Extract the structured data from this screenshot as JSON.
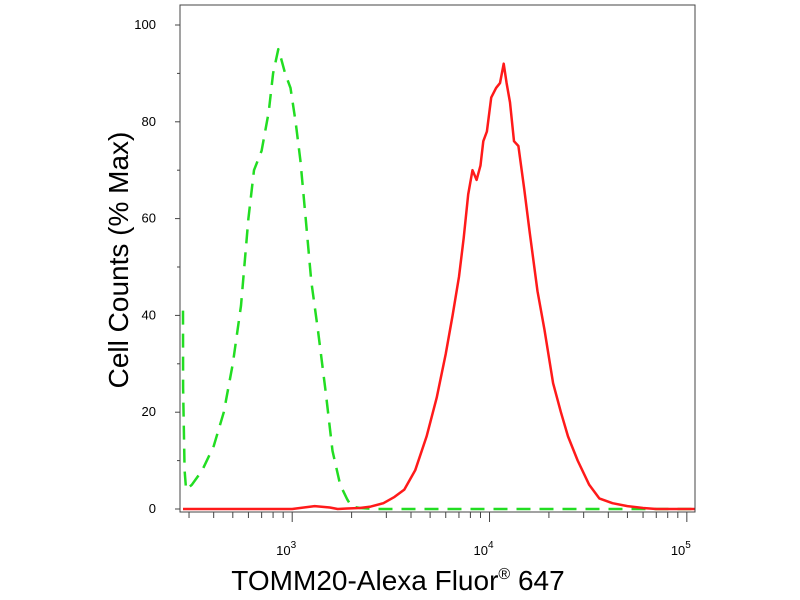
{
  "chart_data": {
    "type": "line",
    "xlabel": "TOMM20-Alexa Fluor",
    "xlabel_superscript": "®",
    "xlabel_suffix": " 647",
    "ylabel": "Cell Counts (% Max)",
    "xscale": "log",
    "xlim": [
      270,
      110000
    ],
    "ylim": [
      0,
      100
    ],
    "y_ticks": [
      0,
      20,
      40,
      60,
      80,
      100
    ],
    "y_tick_labels": [
      "0",
      "20",
      "40",
      "60",
      "80",
      "100"
    ],
    "x_ticks": [
      {
        "base": "10",
        "exp": "3",
        "value": 1000
      },
      {
        "base": "10",
        "exp": "4",
        "value": 10000
      },
      {
        "base": "10",
        "exp": "5",
        "value": 100000
      }
    ],
    "grid": false,
    "series": [
      {
        "color": "#22dd22",
        "style": "dashed",
        "x": [
          275,
          280,
          285,
          290,
          310,
          350,
          400,
          450,
          500,
          550,
          600,
          640,
          700,
          760,
          800,
          850,
          880,
          920,
          980,
          1040,
          1100,
          1170,
          1250,
          1350,
          1480,
          1600,
          1750,
          1900,
          2000,
          2200,
          2600,
          3500,
          5000,
          10000,
          30000,
          110000
        ],
        "y": [
          41,
          25,
          8,
          4,
          5,
          8,
          13,
          20,
          30,
          42,
          60,
          70,
          74,
          82,
          90,
          95,
          93,
          90,
          87,
          80,
          72,
          60,
          47,
          37,
          24,
          12,
          5,
          2,
          0.5,
          0.2,
          0,
          0,
          0,
          0,
          0,
          0
        ]
      },
      {
        "color": "#ff1a1a",
        "style": "solid",
        "x": [
          270,
          1000,
          1300,
          1550,
          1700,
          1900,
          2200,
          2500,
          2900,
          3300,
          3700,
          4200,
          4800,
          5400,
          6000,
          6500,
          7000,
          7400,
          7800,
          8200,
          8600,
          9000,
          9300,
          9700,
          10200,
          10800,
          11300,
          11800,
          12200,
          12700,
          13300,
          14000,
          15000,
          16000,
          17500,
          19000,
          21000,
          23000,
          25000,
          28000,
          32000,
          36000,
          42000,
          50000,
          60000,
          70000,
          110000
        ],
        "y": [
          0,
          0,
          0.6,
          0.3,
          0,
          0.1,
          0.2,
          0.5,
          1.2,
          2.5,
          4,
          8,
          15,
          23,
          32,
          40,
          48,
          56,
          65,
          70,
          68,
          71,
          76,
          78,
          85,
          87,
          88,
          92,
          88,
          84,
          76,
          75,
          66,
          57,
          45,
          37,
          26,
          20,
          15,
          10,
          5,
          2.2,
          1.2,
          0.6,
          0.2,
          0,
          0
        ]
      }
    ]
  }
}
